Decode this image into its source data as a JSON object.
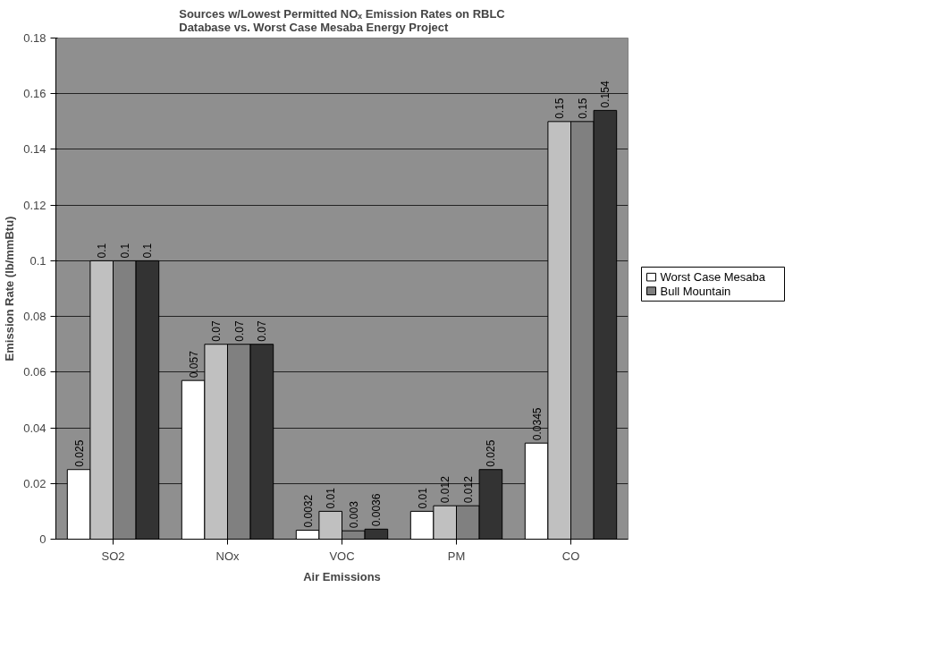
{
  "chart_data": {
    "type": "bar",
    "title": "Sources w/Lowest Permitted NOₓ Emission Rates on RBLC\nDatabase vs. Worst Case Mesaba Energy Project",
    "xlabel": "Air Emissions",
    "ylabel": "Emission Rate (lb/mmBtu)",
    "categories": [
      "SO2",
      "NOx",
      "VOC",
      "PM",
      "CO"
    ],
    "series": [
      {
        "name": "Worst Case Mesaba",
        "color": "#ffffff",
        "values": [
          0.025,
          0.057,
          0.0032,
          0.01,
          0.0345
        ]
      },
      {
        "color": "#c0c0c0",
        "values": [
          0.1,
          0.07,
          0.01,
          0.012,
          0.15
        ]
      },
      {
        "name": "Bull Mountain",
        "color": "#808080",
        "values": [
          0.1,
          0.07,
          0.003,
          0.012,
          0.15
        ]
      },
      {
        "color": "#333333",
        "values": [
          0.1,
          0.07,
          0.0036,
          0.025,
          0.154
        ]
      }
    ],
    "ylim": [
      0,
      0.18
    ],
    "yticks": [
      0,
      0.02,
      0.04,
      0.06,
      0.08,
      0.1,
      0.12,
      0.14,
      0.16,
      0.18
    ],
    "grid": "y",
    "data_labels": true,
    "legend": "right"
  }
}
